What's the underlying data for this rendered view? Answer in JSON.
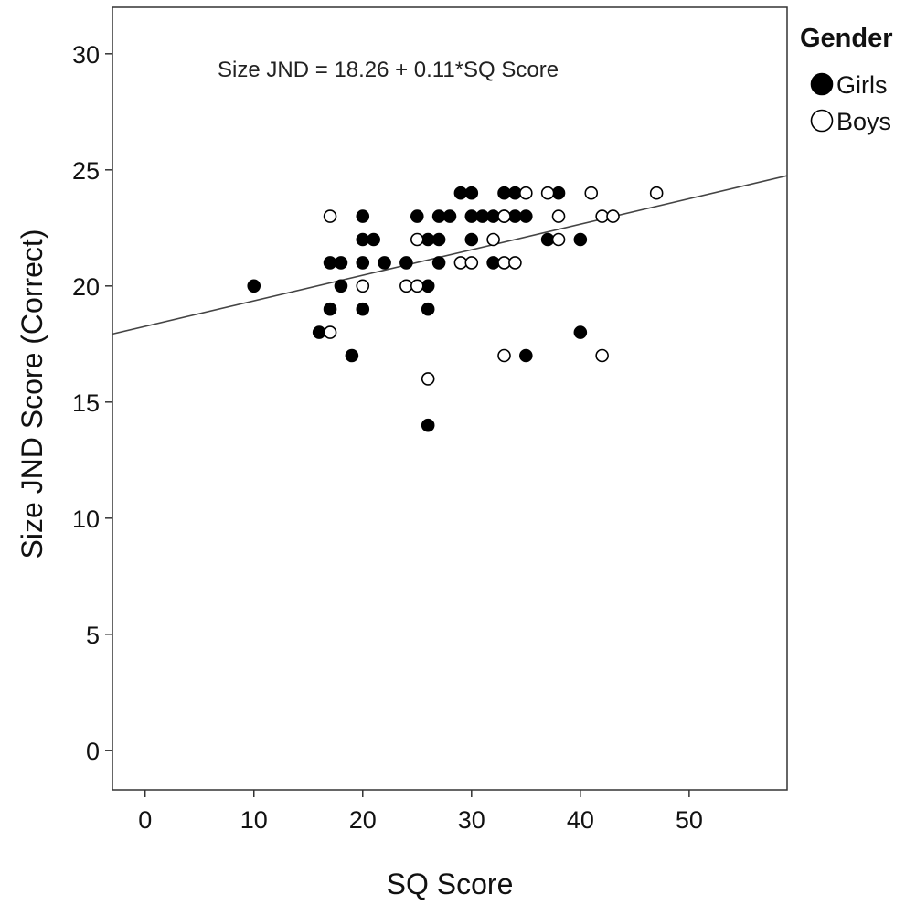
{
  "chart_data": {
    "type": "scatter",
    "xlabel": "SQ Score",
    "ylabel": "Size JND Score (Correct)",
    "xlim": [
      -3,
      59
    ],
    "ylim": [
      -1.7,
      32
    ],
    "x_ticks": [
      0,
      10,
      20,
      30,
      40,
      50
    ],
    "y_ticks": [
      0,
      5,
      10,
      15,
      20,
      25,
      30
    ],
    "grid": false,
    "legend": {
      "title": "Gender",
      "placement": "right-top",
      "entries": [
        {
          "name": "Girls",
          "marker": "filled-circle"
        },
        {
          "name": "Boys",
          "marker": "open-circle"
        }
      ]
    },
    "annotation": "Size JND = 18.26 + 0.11*SQ Score",
    "fit_line": {
      "intercept": 18.26,
      "slope": 0.11
    },
    "series": [
      {
        "name": "Girls",
        "fill": "#000000",
        "points": [
          [
            10,
            20
          ],
          [
            16,
            18
          ],
          [
            17,
            21
          ],
          [
            17,
            19
          ],
          [
            18,
            21
          ],
          [
            18,
            20
          ],
          [
            19,
            17
          ],
          [
            20,
            23
          ],
          [
            20,
            22
          ],
          [
            20,
            21
          ],
          [
            20,
            19
          ],
          [
            21,
            22
          ],
          [
            22,
            21
          ],
          [
            24,
            21
          ],
          [
            25,
            23
          ],
          [
            26,
            22
          ],
          [
            26,
            20
          ],
          [
            26,
            19
          ],
          [
            26,
            14
          ],
          [
            27,
            23
          ],
          [
            27,
            22
          ],
          [
            27,
            21
          ],
          [
            28,
            23
          ],
          [
            29,
            24
          ],
          [
            30,
            24
          ],
          [
            30,
            23
          ],
          [
            30,
            22
          ],
          [
            31,
            23
          ],
          [
            32,
            23
          ],
          [
            32,
            21
          ],
          [
            33,
            24
          ],
          [
            33,
            23
          ],
          [
            34,
            24
          ],
          [
            34,
            23
          ],
          [
            35,
            23
          ],
          [
            35,
            17
          ],
          [
            37,
            22
          ],
          [
            38,
            24
          ],
          [
            40,
            22
          ],
          [
            40,
            18
          ]
        ]
      },
      {
        "name": "Boys",
        "fill": "#ffffff",
        "points": [
          [
            17,
            23
          ],
          [
            17,
            18
          ],
          [
            20,
            20
          ],
          [
            24,
            20
          ],
          [
            25,
            22
          ],
          [
            25,
            20
          ],
          [
            26,
            16
          ],
          [
            29,
            21
          ],
          [
            30,
            21
          ],
          [
            32,
            22
          ],
          [
            33,
            23
          ],
          [
            33,
            21
          ],
          [
            33,
            17
          ],
          [
            34,
            21
          ],
          [
            35,
            24
          ],
          [
            37,
            24
          ],
          [
            38,
            23
          ],
          [
            38,
            22
          ],
          [
            41,
            24
          ],
          [
            42,
            23
          ],
          [
            42,
            17
          ],
          [
            43,
            23
          ],
          [
            47,
            24
          ]
        ]
      }
    ]
  }
}
